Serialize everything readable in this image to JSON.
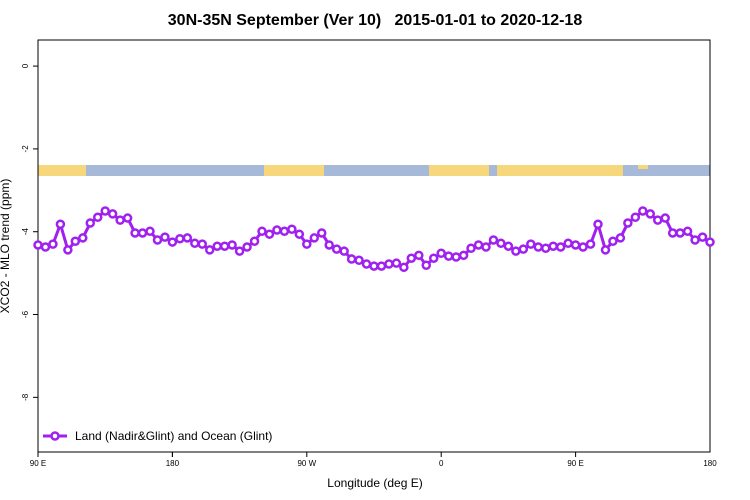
{
  "chart_data": {
    "type": "line",
    "title": "30N-35N September (Ver 10)   2015-01-01 to 2020-12-18",
    "x_label": "Longitude (deg E)",
    "y_label": "XCO2 - MLO trend (ppm)",
    "x": [
      90,
      95,
      100,
      105,
      110,
      115,
      120,
      125,
      130,
      135,
      140,
      145,
      150,
      155,
      160,
      165,
      170,
      175,
      180,
      185,
      190,
      195,
      200,
      205,
      210,
      215,
      220,
      225,
      230,
      235,
      240,
      245,
      250,
      255,
      260,
      265,
      270,
      275,
      280,
      285,
      290,
      295,
      300,
      305,
      310,
      315,
      320,
      325,
      330,
      335,
      340,
      345,
      350,
      355,
      360,
      365,
      370,
      375,
      380,
      385,
      390,
      395,
      400,
      405,
      410,
      415,
      420,
      425,
      430,
      435,
      440,
      445,
      450,
      455,
      460,
      465,
      470,
      475,
      480,
      485,
      490,
      495,
      500,
      505,
      510,
      515,
      520,
      525,
      530,
      535,
      540
    ],
    "series": [
      {
        "name": "Land (Nadir&Glint) and Ocean (Glint)",
        "color": "#a020f0",
        "values": [
          -4.32,
          -4.37,
          -4.3,
          -3.82,
          -4.44,
          -4.23,
          -4.15,
          -3.79,
          -3.65,
          -3.5,
          -3.57,
          -3.72,
          -3.67,
          -4.03,
          -4.03,
          -3.99,
          -4.2,
          -4.13,
          -4.25,
          -4.17,
          -4.15,
          -4.28,
          -4.3,
          -4.44,
          -4.35,
          -4.35,
          -4.32,
          -4.47,
          -4.37,
          -4.23,
          -3.99,
          -4.06,
          -3.96,
          -3.99,
          -3.94,
          -4.06,
          -4.3,
          -4.15,
          -4.03,
          -4.32,
          -4.42,
          -4.47,
          -4.66,
          -4.69,
          -4.78,
          -4.83,
          -4.83,
          -4.78,
          -4.76,
          -4.86,
          -4.64,
          -4.57,
          -4.81,
          -4.64,
          -4.52,
          -4.59,
          -4.61,
          -4.57,
          -4.4,
          -4.32,
          -4.37,
          -4.2,
          -4.28,
          -4.35,
          -4.47,
          -4.42,
          -4.3,
          -4.37,
          -4.4,
          -4.35,
          -4.37,
          -4.28,
          -4.32,
          -4.37,
          -4.3,
          -3.82,
          -4.44,
          -4.23,
          -4.15,
          -3.79,
          -3.65,
          -3.5,
          -3.57,
          -3.72,
          -3.67,
          -4.03,
          -4.03,
          -3.99,
          -4.2,
          -4.13,
          -4.25
        ]
      }
    ],
    "xlim": [
      90,
      540
    ],
    "xticks": [
      {
        "value": 90,
        "label": "90 E"
      },
      180,
      {
        "value": 270,
        "label": "90 W"
      },
      {
        "value": 360,
        "label": "0"
      },
      {
        "value": 450,
        "label": "90 E"
      },
      180
    ],
    "ylim": [
      -9.32,
      0.63
    ],
    "yticks": [
      0,
      -2,
      -4,
      -6,
      -8
    ],
    "legend": "bottomleft"
  }
}
